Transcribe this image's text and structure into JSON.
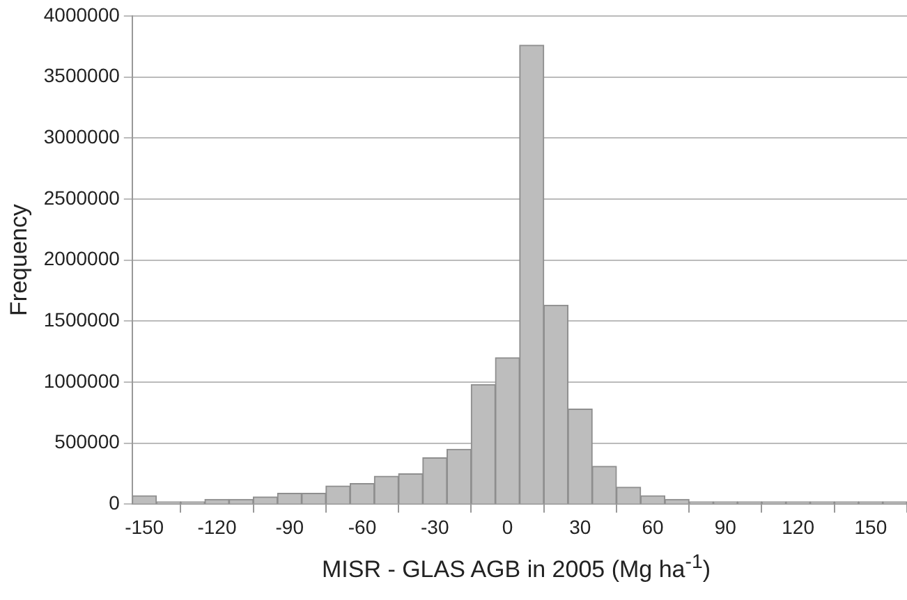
{
  "chart_data": {
    "type": "histogram",
    "xlabel": "MISR - GLAS AGB in 2005 (Mg ha$^{-1}$)",
    "ylabel": "Frequency",
    "bins": [
      -155,
      -145,
      -135,
      -125,
      -115,
      -105,
      -95,
      -85,
      -75,
      -65,
      -55,
      -45,
      -35,
      -25,
      -15,
      -5,
      5,
      15,
      25,
      35,
      45,
      55,
      65,
      75,
      85,
      95,
      105,
      115,
      125,
      135,
      145,
      155,
      165
    ],
    "values": [
      70000,
      20000,
      20000,
      40000,
      40000,
      60000,
      90000,
      90000,
      150000,
      170000,
      230000,
      250000,
      380000,
      450000,
      980000,
      1200000,
      3760000,
      1630000,
      780000,
      310000,
      140000,
      70000,
      40000,
      20000,
      20000,
      20000,
      20000,
      20000,
      20000,
      20000,
      20000,
      20000
    ],
    "color": "#bdbdbd",
    "xlim": [
      -155,
      165
    ],
    "xticks": [
      -150,
      -120,
      -90,
      -60,
      -30,
      0,
      30,
      60,
      90,
      120,
      150
    ],
    "ylim": [
      0,
      4000000
    ],
    "yticks": [
      0,
      500000,
      1000000,
      1500000,
      2000000,
      2500000,
      3000000,
      3500000,
      4000000
    ],
    "grid": "y"
  }
}
